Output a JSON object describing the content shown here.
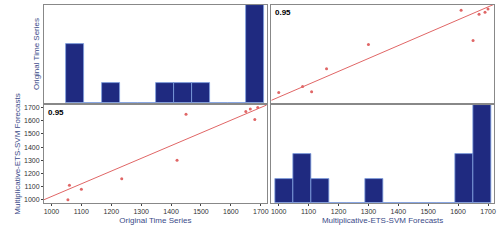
{
  "chart_data": [
    {
      "type": "histogram",
      "ylabel": "Original Time Series",
      "bins": [
        1050,
        1110,
        1170,
        1230,
        1290,
        1350,
        1410,
        1470,
        1530,
        1590,
        1650,
        1710
      ],
      "counts": [
        3,
        0,
        1,
        0,
        0,
        1,
        1,
        1,
        0,
        0,
        5
      ],
      "color": "#1f2a80",
      "xlim": [
        975,
        1720
      ],
      "ylim": [
        0,
        5
      ],
      "tick_labels": false
    },
    {
      "type": "scatter",
      "annotations": [
        {
          "text": "0.95"
        }
      ],
      "x": [
        1000,
        1110,
        1080,
        1160,
        1300,
        1650,
        1670,
        1690,
        1610,
        1700
      ],
      "values": [
        1055,
        1060,
        1100,
        1235,
        1420,
        1450,
        1650,
        1665,
        1680,
        1690
      ],
      "color": "#e06666",
      "fit_line": {
        "x": [
          975,
          1720
        ],
        "values": [
          995,
          1725
        ],
        "color": "#e06666"
      },
      "xlim": [
        975,
        1720
      ],
      "ylim": [
        975,
        1720
      ],
      "tick_labels": false
    },
    {
      "type": "scatter",
      "xlabel": "Original Time Series",
      "ylabel": "Multiplicative-ETS-SVM Forecasts",
      "annotations": [
        {
          "text": "0.95"
        }
      ],
      "x": [
        1055,
        1060,
        1100,
        1235,
        1420,
        1450,
        1650,
        1665,
        1680,
        1690
      ],
      "values": [
        1000,
        1110,
        1080,
        1160,
        1300,
        1650,
        1670,
        1690,
        1610,
        1700
      ],
      "color": "#e06666",
      "fit_line": {
        "x": [
          975,
          1720
        ],
        "values": [
          1000,
          1720
        ],
        "color": "#e06666"
      },
      "xlim": [
        975,
        1720
      ],
      "ylim": [
        975,
        1720
      ],
      "xticks": [
        1000,
        1100,
        1200,
        1300,
        1400,
        1500,
        1600,
        1700
      ],
      "yticks": [
        1000,
        1100,
        1200,
        1300,
        1400,
        1500,
        1600,
        1700
      ]
    },
    {
      "type": "histogram",
      "xlabel": "Multiplicative-ETS-SVM Forecasts",
      "bins": [
        990,
        1050,
        1110,
        1170,
        1230,
        1290,
        1350,
        1410,
        1470,
        1530,
        1590,
        1650,
        1710
      ],
      "counts": [
        1,
        2,
        1,
        0,
        0,
        1,
        0,
        0,
        0,
        0,
        2,
        4
      ],
      "color": "#1f2a80",
      "xlim": [
        975,
        1720
      ],
      "ylim": [
        0,
        4
      ],
      "xticks": [
        1000,
        1100,
        1200,
        1300,
        1400,
        1500,
        1600,
        1700
      ],
      "tick_labels": "x"
    }
  ]
}
